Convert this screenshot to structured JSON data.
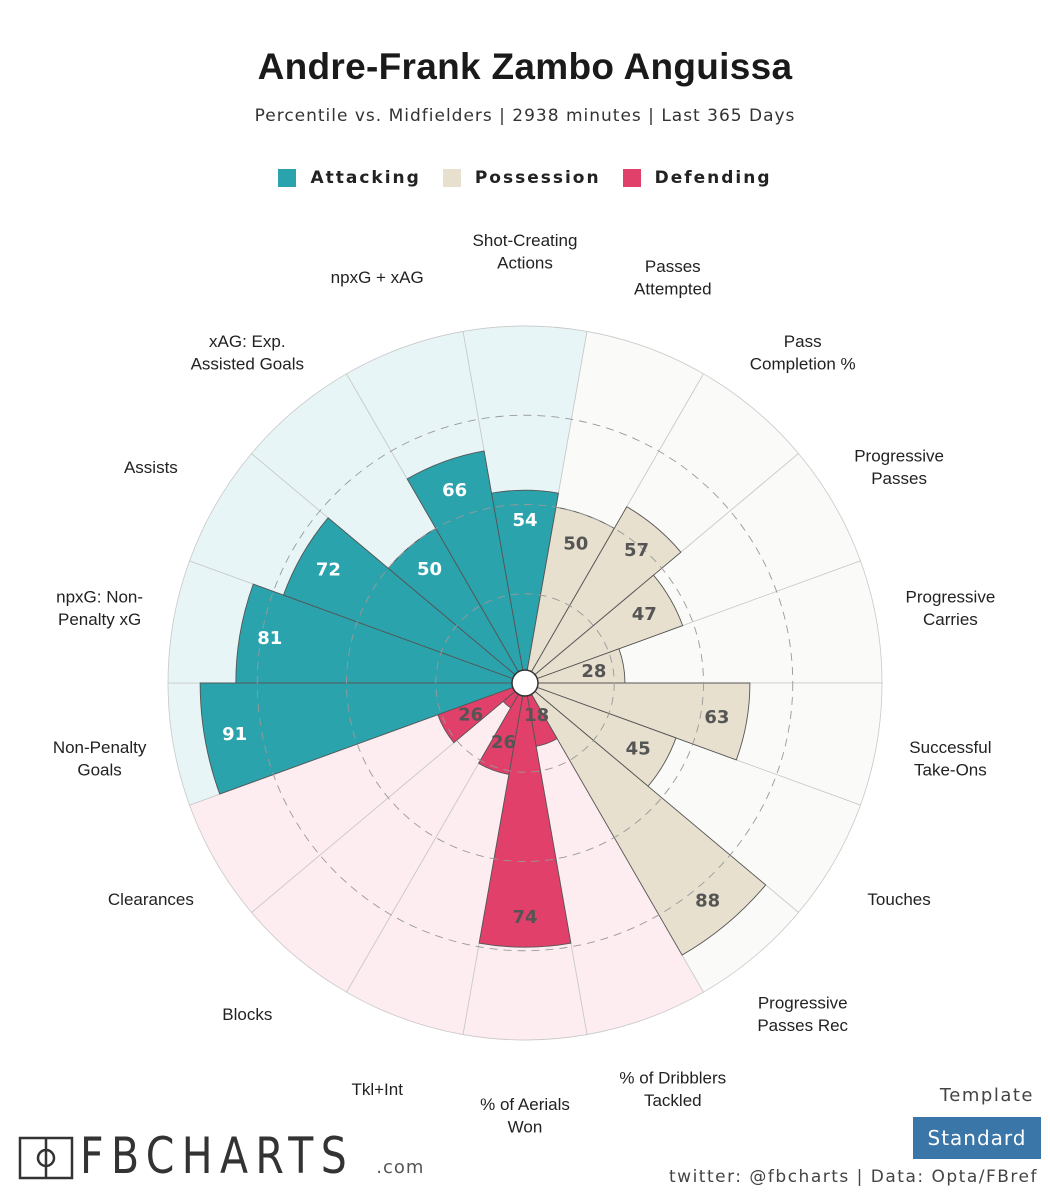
{
  "header": {
    "title": "Andre-Frank Zambo Anguissa",
    "subtitle": "Percentile vs. Midfielders | 2938 minutes | Last 365 Days"
  },
  "legend": [
    {
      "label": "Attacking",
      "color": "#2aa3ad"
    },
    {
      "label": "Possession",
      "color": "#e8e0cf"
    },
    {
      "label": "Defending",
      "color": "#e0406a"
    }
  ],
  "chart_data": {
    "type": "radial-bar",
    "scale_max": 100,
    "categories": [
      {
        "label": "Shot-Creating Actions",
        "value": 54,
        "group": "Attacking"
      },
      {
        "label": "Passes Attempted",
        "value": 50,
        "group": "Possession"
      },
      {
        "label": "Pass Completion %",
        "value": 57,
        "group": "Possession"
      },
      {
        "label": "Progressive Passes",
        "value": 47,
        "group": "Possession"
      },
      {
        "label": "Progressive Carries",
        "value": 28,
        "group": "Possession"
      },
      {
        "label": "Successful Take-Ons",
        "value": 63,
        "group": "Possession"
      },
      {
        "label": "Touches",
        "value": 45,
        "group": "Possession"
      },
      {
        "label": "Progressive Passes Rec",
        "value": 88,
        "group": "Possession"
      },
      {
        "label": "% of Dribblers Tackled",
        "value": 18,
        "group": "Defending"
      },
      {
        "label": "% of Aerials Won",
        "value": 74,
        "group": "Defending"
      },
      {
        "label": "Tkl+Int",
        "value": 26,
        "group": "Defending"
      },
      {
        "label": "Blocks",
        "value": 8,
        "group": "Defending"
      },
      {
        "label": "Clearances",
        "value": 26,
        "group": "Defending"
      },
      {
        "label": "Non-Penalty Goals",
        "value": 91,
        "group": "Attacking"
      },
      {
        "label": "npxG: Non-Penalty xG",
        "value": 81,
        "group": "Attacking"
      },
      {
        "label": "Assists",
        "value": 72,
        "group": "Attacking"
      },
      {
        "label": "xAG: Exp. Assisted Goals",
        "value": 50,
        "group": "Attacking"
      },
      {
        "label": "npxG + xAG",
        "value": 66,
        "group": "Attacking"
      }
    ],
    "label_lines": [
      [
        "Shot-Creating",
        "Actions"
      ],
      [
        "Passes",
        "Attempted"
      ],
      [
        "Pass",
        "Completion %"
      ],
      [
        "Progressive",
        "Passes"
      ],
      [
        "Progressive",
        "Carries"
      ],
      [
        "Successful",
        "Take-Ons"
      ],
      [
        "Touches"
      ],
      [
        "Progressive",
        "Passes Rec"
      ],
      [
        "% of Dribblers",
        "Tackled"
      ],
      [
        "% of Aerials",
        "Won"
      ],
      [
        "Tkl+Int"
      ],
      [
        "Blocks"
      ],
      [
        "Clearances"
      ],
      [
        "Non-Penalty",
        "Goals"
      ],
      [
        "npxG: Non-",
        "Penalty xG"
      ],
      [
        "Assists"
      ],
      [
        "xAG: Exp.",
        "Assisted Goals"
      ],
      [
        "npxG + xAG"
      ]
    ],
    "group_colors": {
      "Attacking": {
        "bar": "#2aa3ad",
        "bg": "#e8f5f6",
        "text": "#ffffff"
      },
      "Possession": {
        "bar": "#e8e0cf",
        "bg": "#fafaf8",
        "text": "#555555"
      },
      "Defending": {
        "bar": "#e0406a",
        "bg": "#fdecf0",
        "text": "#555555"
      }
    },
    "gridlines": [
      25,
      50,
      75
    ]
  },
  "branding": {
    "logo_text": "FBCHARTS",
    "logo_suffix": ".com",
    "template_label": "Template",
    "template_value": "Standard",
    "footer": "twitter: @fbcharts | Data: Opta/FBref"
  }
}
